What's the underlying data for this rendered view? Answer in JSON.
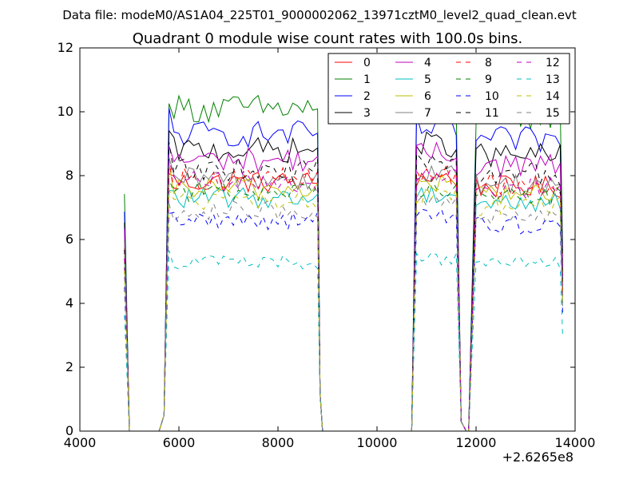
{
  "suptitle": "Data file: modeM0/AS1A04_225T01_9000002062_13971cztM0_level2_quad_clean.evt",
  "chart_data": {
    "type": "line",
    "title": "Quadrant 0 module wise count rates with 100.0s bins.",
    "xlabel": "",
    "ylabel": "",
    "xlim": [
      4000,
      14000
    ],
    "ylim": [
      0,
      12
    ],
    "x_offset_label": "+2.6265e8",
    "x_ticks": [
      4000,
      6000,
      8000,
      10000,
      12000,
      14000
    ],
    "x_tick_labels": [
      "4000",
      "6000",
      "8000",
      "10000",
      "12000",
      "14000"
    ],
    "y_ticks": [
      0,
      2,
      4,
      6,
      8,
      10,
      12
    ],
    "y_tick_labels": [
      "0",
      "2",
      "4",
      "6",
      "8",
      "10",
      "12"
    ],
    "grid": false,
    "legend_position": "top-right",
    "segments": [
      {
        "x_start": 4900,
        "x_end": 5100
      },
      {
        "x_start": 5600,
        "x_end": 8900
      },
      {
        "x_start": 10700,
        "x_end": 11700
      },
      {
        "x_start": 11850,
        "x_end": 13750
      }
    ],
    "series": [
      {
        "name": "0",
        "color": "#ff0000",
        "dash": "solid",
        "level": 7.8
      },
      {
        "name": "1",
        "color": "#008000",
        "dash": "solid",
        "level": 10.1
      },
      {
        "name": "2",
        "color": "#0000ff",
        "dash": "solid",
        "level": 9.3
      },
      {
        "name": "3",
        "color": "#000000",
        "dash": "solid",
        "level": 8.8
      },
      {
        "name": "4",
        "color": "#bf00bf",
        "dash": "solid",
        "level": 8.5
      },
      {
        "name": "5",
        "color": "#00bfbf",
        "dash": "solid",
        "level": 7.3
      },
      {
        "name": "6",
        "color": "#bfbf00",
        "dash": "solid",
        "level": 7.6
      },
      {
        "name": "7",
        "color": "#808080",
        "dash": "solid",
        "level": 7.9
      },
      {
        "name": "8",
        "color": "#ff0000",
        "dash": "dashed",
        "level": 7.9
      },
      {
        "name": "9",
        "color": "#008000",
        "dash": "dashed",
        "level": 7.5
      },
      {
        "name": "10",
        "color": "#0000ff",
        "dash": "dashed",
        "level": 6.6
      },
      {
        "name": "11",
        "color": "#000000",
        "dash": "dashed",
        "level": 8.2
      },
      {
        "name": "12",
        "color": "#bf00bf",
        "dash": "dashed",
        "level": 7.8
      },
      {
        "name": "13",
        "color": "#00bfbf",
        "dash": "dashed",
        "level": 5.3
      },
      {
        "name": "14",
        "color": "#bfbf00",
        "dash": "dashed",
        "level": 7.2
      },
      {
        "name": "15",
        "color": "#808080",
        "dash": "dashed",
        "level": 6.9
      }
    ]
  }
}
